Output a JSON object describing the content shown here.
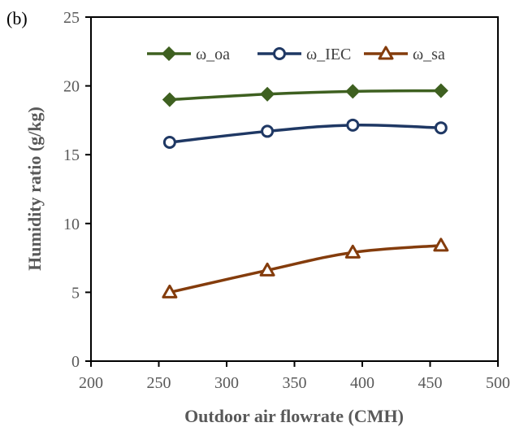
{
  "panel_label": "(b)",
  "chart_data": {
    "type": "line",
    "title": "",
    "xlabel": "Outdoor air flowrate (CMH)",
    "ylabel": "Humidity ratio (g/kg)",
    "xlim": [
      200,
      500
    ],
    "ylim": [
      0,
      25
    ],
    "xticks": [
      "200",
      "250",
      "300",
      "350",
      "400",
      "450",
      "500"
    ],
    "yticks": [
      "0",
      "5",
      "10",
      "15",
      "20",
      "25"
    ],
    "grid": false,
    "legend_position": "top",
    "x": [
      258,
      330,
      393,
      458
    ],
    "series": [
      {
        "name": "ω_oa",
        "values": [
          19.0,
          19.4,
          19.6,
          19.65
        ],
        "color": "#3e6020",
        "marker": "diamond"
      },
      {
        "name": "ω_IEC",
        "values": [
          15.9,
          16.7,
          17.15,
          16.95
        ],
        "color": "#1f3864",
        "marker": "circle"
      },
      {
        "name": "ω_sa",
        "values": [
          5.0,
          6.6,
          7.9,
          8.4
        ],
        "color": "#843c0c",
        "marker": "triangle"
      }
    ]
  }
}
